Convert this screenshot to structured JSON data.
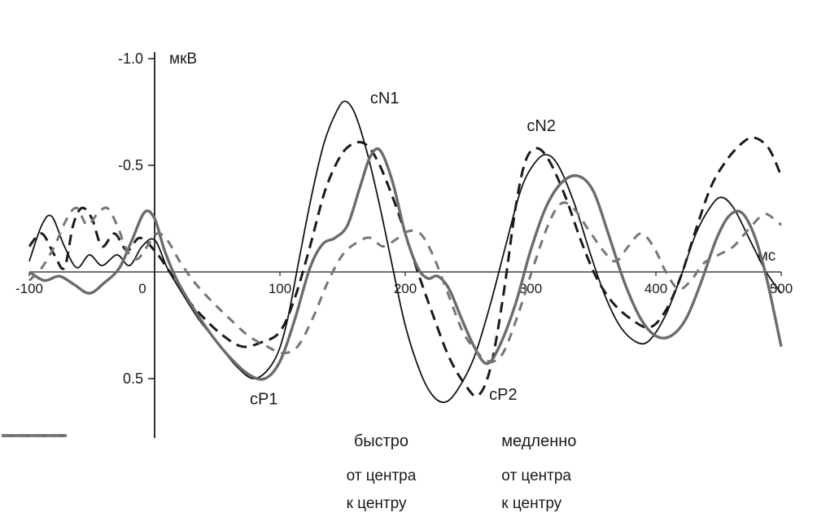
{
  "chart_data": {
    "type": "line",
    "title": "",
    "xlabel": "мс",
    "ylabel": "мкВ",
    "xlim": [
      -100,
      500
    ],
    "ylim": [
      -1.0,
      0.5
    ],
    "y_axis_inverted_negative_up": true,
    "grid": false,
    "x_ticks": [
      {
        "value": -100,
        "label": "-100"
      },
      {
        "value": 0,
        "label": "0"
      },
      {
        "value": 100,
        "label": "100"
      },
      {
        "value": 200,
        "label": "200"
      },
      {
        "value": 300,
        "label": "300"
      },
      {
        "value": 400,
        "label": "400"
      },
      {
        "value": 500,
        "label": "500"
      }
    ],
    "y_ticks": [
      {
        "value": -1.0,
        "label": "-1.0"
      },
      {
        "value": -0.5,
        "label": "-0.5"
      },
      {
        "value": 0.5,
        "label": "0.5"
      }
    ],
    "annotations": [
      {
        "label": "cN1",
        "x": 172,
        "y": -0.79
      },
      {
        "label": "cN2",
        "x": 297,
        "y": -0.66
      },
      {
        "label": "cP1",
        "x": 76,
        "y": 0.62
      },
      {
        "label": "cP2",
        "x": 267,
        "y": 0.6
      }
    ],
    "series": [
      {
        "name": "быстро — от центра",
        "group": "быстро",
        "label": "от центра",
        "color": "#141414",
        "style": "solid",
        "width": 1.8,
        "dash": "",
        "points": [
          [
            -100,
            -0.05
          ],
          [
            -90,
            -0.22
          ],
          [
            -82,
            -0.26
          ],
          [
            -72,
            -0.12
          ],
          [
            -62,
            -0.02
          ],
          [
            -52,
            -0.08
          ],
          [
            -42,
            -0.03
          ],
          [
            -30,
            -0.08
          ],
          [
            -20,
            -0.03
          ],
          [
            -10,
            -0.12
          ],
          [
            0,
            -0.15
          ],
          [
            10,
            -0.02
          ],
          [
            20,
            0.08
          ],
          [
            35,
            0.22
          ],
          [
            50,
            0.33
          ],
          [
            65,
            0.44
          ],
          [
            80,
            0.5
          ],
          [
            95,
            0.42
          ],
          [
            105,
            0.25
          ],
          [
            115,
            -0.05
          ],
          [
            125,
            -0.35
          ],
          [
            135,
            -0.6
          ],
          [
            145,
            -0.75
          ],
          [
            152,
            -0.8
          ],
          [
            160,
            -0.74
          ],
          [
            170,
            -0.55
          ],
          [
            180,
            -0.3
          ],
          [
            190,
            -0.02
          ],
          [
            200,
            0.25
          ],
          [
            212,
            0.47
          ],
          [
            222,
            0.58
          ],
          [
            232,
            0.61
          ],
          [
            242,
            0.55
          ],
          [
            255,
            0.4
          ],
          [
            268,
            0.15
          ],
          [
            280,
            -0.12
          ],
          [
            292,
            -0.38
          ],
          [
            302,
            -0.5
          ],
          [
            312,
            -0.55
          ],
          [
            322,
            -0.5
          ],
          [
            335,
            -0.32
          ],
          [
            348,
            -0.08
          ],
          [
            360,
            0.12
          ],
          [
            372,
            0.26
          ],
          [
            385,
            0.33
          ],
          [
            395,
            0.32
          ],
          [
            408,
            0.2
          ],
          [
            420,
            0.02
          ],
          [
            432,
            -0.18
          ],
          [
            443,
            -0.3
          ],
          [
            452,
            -0.35
          ],
          [
            462,
            -0.3
          ],
          [
            475,
            -0.15
          ],
          [
            488,
            0.0
          ],
          [
            500,
            0.1
          ]
        ]
      },
      {
        "name": "быстро — к центру",
        "group": "быстро",
        "label": "к центру",
        "color": "#1a1a1a",
        "style": "dashed",
        "width": 3,
        "dash": "13 8",
        "points": [
          [
            -100,
            -0.12
          ],
          [
            -90,
            -0.18
          ],
          [
            -80,
            -0.08
          ],
          [
            -72,
            -0.02
          ],
          [
            -65,
            -0.22
          ],
          [
            -58,
            -0.3
          ],
          [
            -50,
            -0.25
          ],
          [
            -42,
            -0.12
          ],
          [
            -32,
            -0.18
          ],
          [
            -22,
            -0.1
          ],
          [
            -12,
            -0.16
          ],
          [
            0,
            -0.1
          ],
          [
            12,
            0.0
          ],
          [
            25,
            0.12
          ],
          [
            40,
            0.22
          ],
          [
            55,
            0.3
          ],
          [
            70,
            0.35
          ],
          [
            85,
            0.33
          ],
          [
            100,
            0.28
          ],
          [
            112,
            0.12
          ],
          [
            124,
            -0.12
          ],
          [
            136,
            -0.38
          ],
          [
            148,
            -0.54
          ],
          [
            158,
            -0.6
          ],
          [
            168,
            -0.6
          ],
          [
            178,
            -0.52
          ],
          [
            190,
            -0.35
          ],
          [
            200,
            -0.18
          ],
          [
            210,
            0.0
          ],
          [
            222,
            0.2
          ],
          [
            235,
            0.4
          ],
          [
            248,
            0.53
          ],
          [
            258,
            0.58
          ],
          [
            268,
            0.45
          ],
          [
            278,
            0.12
          ],
          [
            288,
            -0.3
          ],
          [
            296,
            -0.52
          ],
          [
            305,
            -0.58
          ],
          [
            315,
            -0.52
          ],
          [
            328,
            -0.35
          ],
          [
            340,
            -0.15
          ],
          [
            352,
            0.02
          ],
          [
            365,
            0.14
          ],
          [
            380,
            0.22
          ],
          [
            395,
            0.26
          ],
          [
            408,
            0.18
          ],
          [
            420,
            0.02
          ],
          [
            432,
            -0.2
          ],
          [
            444,
            -0.4
          ],
          [
            456,
            -0.52
          ],
          [
            468,
            -0.6
          ],
          [
            478,
            -0.63
          ],
          [
            490,
            -0.58
          ],
          [
            500,
            -0.45
          ]
        ]
      },
      {
        "name": "медленно — от центра",
        "group": "медленно",
        "label": "от центра",
        "color": "#6b6b6b",
        "style": "solid",
        "width": 3.4,
        "dash": "",
        "points": [
          [
            -100,
            0.0
          ],
          [
            -88,
            0.04
          ],
          [
            -76,
            0.02
          ],
          [
            -64,
            0.06
          ],
          [
            -52,
            0.1
          ],
          [
            -40,
            0.05
          ],
          [
            -28,
            -0.02
          ],
          [
            -18,
            -0.15
          ],
          [
            -8,
            -0.28
          ],
          [
            0,
            -0.25
          ],
          [
            8,
            -0.1
          ],
          [
            18,
            0.04
          ],
          [
            32,
            0.18
          ],
          [
            46,
            0.3
          ],
          [
            60,
            0.4
          ],
          [
            75,
            0.48
          ],
          [
            88,
            0.5
          ],
          [
            100,
            0.42
          ],
          [
            112,
            0.22
          ],
          [
            124,
            -0.02
          ],
          [
            134,
            -0.13
          ],
          [
            144,
            -0.16
          ],
          [
            154,
            -0.22
          ],
          [
            164,
            -0.4
          ],
          [
            172,
            -0.54
          ],
          [
            180,
            -0.57
          ],
          [
            190,
            -0.42
          ],
          [
            200,
            -0.18
          ],
          [
            210,
            -0.02
          ],
          [
            218,
            0.03
          ],
          [
            226,
            0.02
          ],
          [
            235,
            0.08
          ],
          [
            245,
            0.22
          ],
          [
            255,
            0.35
          ],
          [
            265,
            0.43
          ],
          [
            275,
            0.35
          ],
          [
            288,
            0.15
          ],
          [
            300,
            -0.1
          ],
          [
            312,
            -0.3
          ],
          [
            325,
            -0.42
          ],
          [
            338,
            -0.45
          ],
          [
            350,
            -0.38
          ],
          [
            362,
            -0.18
          ],
          [
            375,
            0.05
          ],
          [
            388,
            0.22
          ],
          [
            400,
            0.3
          ],
          [
            412,
            0.3
          ],
          [
            424,
            0.22
          ],
          [
            436,
            0.05
          ],
          [
            448,
            -0.15
          ],
          [
            458,
            -0.26
          ],
          [
            468,
            -0.28
          ],
          [
            478,
            -0.18
          ],
          [
            488,
            0.02
          ],
          [
            500,
            0.35
          ]
        ]
      },
      {
        "name": "медленно — к центру",
        "group": "медленно",
        "label": "к центру",
        "color": "#767676",
        "style": "dashed",
        "width": 3,
        "dash": "11 9",
        "points": [
          [
            -100,
            0.04
          ],
          [
            -90,
            -0.02
          ],
          [
            -80,
            -0.12
          ],
          [
            -70,
            -0.25
          ],
          [
            -62,
            -0.3
          ],
          [
            -54,
            -0.22
          ],
          [
            -46,
            -0.27
          ],
          [
            -38,
            -0.3
          ],
          [
            -30,
            -0.22
          ],
          [
            -22,
            -0.1
          ],
          [
            -14,
            -0.06
          ],
          [
            -6,
            -0.12
          ],
          [
            2,
            -0.18
          ],
          [
            10,
            -0.15
          ],
          [
            20,
            -0.05
          ],
          [
            32,
            0.05
          ],
          [
            46,
            0.14
          ],
          [
            60,
            0.22
          ],
          [
            75,
            0.3
          ],
          [
            90,
            0.35
          ],
          [
            102,
            0.38
          ],
          [
            114,
            0.35
          ],
          [
            126,
            0.22
          ],
          [
            138,
            0.05
          ],
          [
            150,
            -0.08
          ],
          [
            162,
            -0.14
          ],
          [
            172,
            -0.16
          ],
          [
            182,
            -0.12
          ],
          [
            192,
            -0.15
          ],
          [
            202,
            -0.19
          ],
          [
            212,
            -0.18
          ],
          [
            222,
            -0.08
          ],
          [
            234,
            0.1
          ],
          [
            246,
            0.28
          ],
          [
            258,
            0.38
          ],
          [
            268,
            0.42
          ],
          [
            278,
            0.38
          ],
          [
            290,
            0.2
          ],
          [
            302,
            -0.02
          ],
          [
            314,
            -0.22
          ],
          [
            324,
            -0.32
          ],
          [
            334,
            -0.3
          ],
          [
            346,
            -0.2
          ],
          [
            358,
            -0.1
          ],
          [
            368,
            -0.05
          ],
          [
            378,
            -0.12
          ],
          [
            388,
            -0.18
          ],
          [
            398,
            -0.12
          ],
          [
            408,
            0.0
          ],
          [
            418,
            0.08
          ],
          [
            428,
            0.04
          ],
          [
            438,
            -0.04
          ],
          [
            450,
            -0.08
          ],
          [
            462,
            -0.12
          ],
          [
            474,
            -0.2
          ],
          [
            486,
            -0.27
          ],
          [
            494,
            -0.25
          ],
          [
            500,
            -0.22
          ]
        ]
      }
    ],
    "legend": {
      "position": "bottom",
      "groups": [
        {
          "title": "быстро",
          "entries": [
            {
              "label": "от центра",
              "style": "solid",
              "color": "#141414"
            },
            {
              "label": "к центру",
              "style": "dashed",
              "color": "#1a1a1a"
            }
          ]
        },
        {
          "title": "медленно",
          "entries": [
            {
              "label": "от центра",
              "style": "solid",
              "color": "#6b6b6b"
            },
            {
              "label": "к центру",
              "style": "dashed",
              "color": "#767676"
            }
          ]
        }
      ]
    }
  }
}
